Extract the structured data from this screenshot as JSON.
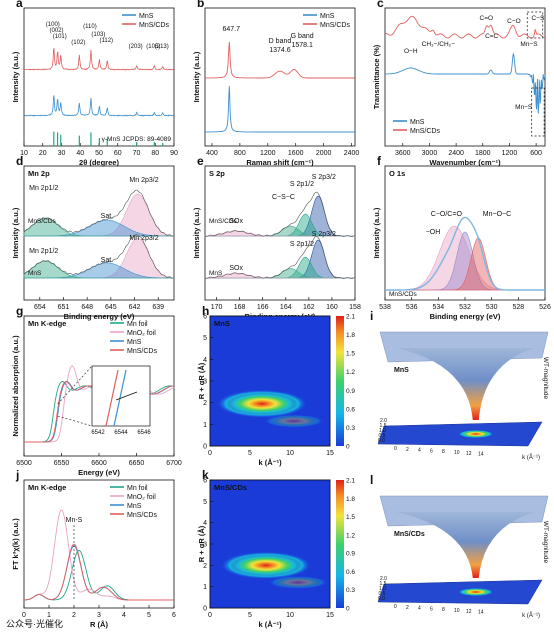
{
  "colors": {
    "red": "#e0605f",
    "blue": "#3c8fd0",
    "teal": "#1fa68a",
    "pink": "#e6a3c6",
    "green": "#3aaa8c",
    "purple": "#9c88c8",
    "navy": "#2a55a8"
  },
  "watermark": "公众号·光催化",
  "chart_data": [
    {
      "panel": "a",
      "type": "line",
      "xlabel": "2θ (degree)",
      "ylabel": "Intensity (a.u.)",
      "xlim": [
        10,
        90
      ],
      "xticks": [
        10,
        20,
        30,
        40,
        50,
        60,
        70,
        80,
        90
      ],
      "legend": [
        {
          "name": "MnS",
          "color": "#3c8fd0"
        },
        {
          "name": "MnS/CDs",
          "color": "#e0605f"
        }
      ],
      "series": [
        {
          "name": "MnS/CDs",
          "peaks": [
            [
              25.9,
              0.85
            ],
            [
              27.9,
              0.7
            ],
            [
              29.6,
              0.55
            ],
            [
              39.5,
              0.55
            ],
            [
              45.7,
              0.75
            ],
            [
              50.2,
              0.4
            ],
            [
              54.4,
              0.35
            ],
            [
              70.1,
              0.15
            ],
            [
              79.5,
              0.15
            ],
            [
              84.0,
              0.12
            ]
          ]
        },
        {
          "name": "MnS",
          "peaks": [
            [
              25.9,
              0.8
            ],
            [
              27.9,
              0.65
            ],
            [
              29.6,
              0.5
            ],
            [
              39.5,
              0.5
            ],
            [
              45.7,
              0.7
            ],
            [
              50.2,
              0.35
            ],
            [
              54.4,
              0.3
            ],
            [
              70.1,
              0.12
            ],
            [
              79.5,
              0.12
            ],
            [
              84.0,
              0.1
            ]
          ]
        }
      ],
      "reference": {
        "label": "γ-MnS JCPDS: 89-4089",
        "lines": [
          [
            25.9,
            0.9
          ],
          [
            27.9,
            0.85
          ],
          [
            29.6,
            0.7
          ],
          [
            39.5,
            0.65
          ],
          [
            45.7,
            0.85
          ],
          [
            50.2,
            0.5
          ],
          [
            54.4,
            0.45
          ],
          [
            70.1,
            0.25
          ],
          [
            79.5,
            0.25
          ],
          [
            84.0,
            0.2
          ]
        ]
      },
      "annotations": [
        "(100)",
        "(002)",
        "(101)",
        "(102)",
        "(110)",
        "(103)",
        "(112)",
        "(203)",
        "(105)",
        "(213)"
      ]
    },
    {
      "panel": "b",
      "type": "line",
      "xlabel": "Raman shift (cm⁻¹)",
      "ylabel": "Intensity (a.u.)",
      "xlim": [
        300,
        2450
      ],
      "xticks": [
        400,
        800,
        1200,
        1600,
        2000,
        2400
      ],
      "legend": [
        {
          "name": "MnS",
          "color": "#3c8fd0"
        },
        {
          "name": "MnS/CDs",
          "color": "#e0605f"
        }
      ],
      "annotations": [
        "647.7",
        "D band",
        "1374.6",
        "G band",
        "1578.1"
      ],
      "series": [
        {
          "name": "MnS/CDs",
          "peak": 647.7,
          "d_band": 1374.6,
          "g_band": 1578.1
        },
        {
          "name": "MnS",
          "peak": 647.7
        }
      ]
    },
    {
      "panel": "c",
      "type": "line",
      "xlabel": "Wavenumber (cm⁻¹)",
      "ylabel": "Transmittance (%)",
      "xlim": [
        4000,
        400
      ],
      "xticks": [
        3600,
        3000,
        2400,
        1800,
        1200,
        600
      ],
      "legend": [
        {
          "name": "MnS",
          "color": "#3c8fd0"
        },
        {
          "name": "MnS/CDs",
          "color": "#e0605f"
        }
      ],
      "annotations": [
        "O−H",
        "CH₃−/CH₂−",
        "C=O",
        "C=C",
        "C−O",
        "C−S",
        "Mn−S",
        "Mn−S"
      ]
    },
    {
      "panel": "d",
      "type": "area",
      "title": "Mn 2p",
      "xlabel": "Binding energy (eV)",
      "ylabel": "Intensity (a.u.)",
      "xlim": [
        656,
        637
      ],
      "xticks": [
        654,
        651,
        648,
        645,
        642,
        639
      ],
      "annotations": [
        "Mn 2p1/2",
        "Sat.",
        "Mn 2p3/2",
        "MnS/CDs",
        "Mn 2p1/2",
        "Sat.",
        "Mn 2p3/2",
        "MnS"
      ],
      "components": [
        {
          "name": "Mn 2p3/2",
          "center": 641.6
        },
        {
          "name": "Sat.",
          "center": 645.5
        },
        {
          "name": "Mn 2p1/2",
          "center": 653.3
        }
      ]
    },
    {
      "panel": "e",
      "type": "area",
      "title": "S 2p",
      "xlabel": "Binding energy (eV)",
      "ylabel": "Intensity (a.u.)",
      "xlim": [
        171,
        158
      ],
      "xticks": [
        170,
        168,
        166,
        164,
        162,
        160,
        158
      ],
      "annotations": [
        "SOx",
        "C−S−C",
        "S 2p1/2",
        "S 2p3/2",
        "MnS/CDs",
        "SOx",
        "S 2p1/2",
        "S 2p3/2",
        "MnS"
      ],
      "components": [
        {
          "name": "S 2p3/2",
          "center": 161.2
        },
        {
          "name": "S 2p1/2",
          "center": 162.3
        },
        {
          "name": "C−S−C",
          "center": 163.6
        },
        {
          "name": "SOx",
          "center": 168.3
        }
      ]
    },
    {
      "panel": "f",
      "type": "area",
      "title": "O 1s",
      "xlabel": "Binding energy (eV)",
      "ylabel": "Intensity (a.u.)",
      "xlim": [
        538,
        526
      ],
      "xticks": [
        538,
        536,
        534,
        532,
        530,
        528,
        526
      ],
      "annotations": [
        "C−O/C=O",
        "−OH",
        "Mn−O−C",
        "MnS/CDs"
      ],
      "components": [
        {
          "name": "C−O/C=O",
          "center": 532.0
        },
        {
          "name": "−OH",
          "center": 532.8
        },
        {
          "name": "Mn−O−C",
          "center": 531.0
        }
      ]
    },
    {
      "panel": "g",
      "type": "line",
      "title": "Mn K-edge",
      "xlabel": "Energy (eV)",
      "ylabel": "Normalized absorption (a.u.)",
      "xlim": [
        6500,
        6700
      ],
      "xticks": [
        6500,
        6550,
        6600,
        6650,
        6700
      ],
      "legend": [
        {
          "name": "Mn foil",
          "color": "#1fa68a"
        },
        {
          "name": "MnO₂ foil",
          "color": "#e6a3c6"
        },
        {
          "name": "MnS",
          "color": "#3c8fd0"
        },
        {
          "name": "MnS/CDs",
          "color": "#e0605f"
        }
      ],
      "inset": {
        "xticks": [
          6542,
          6544,
          6546
        ]
      }
    },
    {
      "panel": "h",
      "type": "heatmap",
      "title": "MnS",
      "xlabel": "k (Å⁻¹)",
      "ylabel": "R + αR (Å)",
      "xlim": [
        0,
        15
      ],
      "ylim": [
        0,
        6
      ],
      "xticks": [
        0,
        5,
        10,
        15
      ],
      "yticks": [
        0,
        1,
        2,
        3,
        4,
        5,
        6
      ],
      "colorbar": [
        0,
        0.3,
        0.6,
        0.9,
        1.2,
        1.5,
        1.8,
        2.1
      ],
      "max": {
        "k": 6.5,
        "R": 1.95
      }
    },
    {
      "panel": "i",
      "type": "surface",
      "title": "MnS",
      "zlabel": "WT-magnitude",
      "axis_labels": [
        "k (Å⁻¹)"
      ],
      "ticks": [
        "2.0",
        "1.5",
        "1.0",
        "0.5",
        "0.0",
        "0",
        "2",
        "4",
        "6",
        "8",
        "10",
        "12",
        "14"
      ]
    },
    {
      "panel": "j",
      "type": "line",
      "title": "Mn K-edge",
      "xlabel": "R (Å)",
      "ylabel": "FT k³χ(k) (a.u.)",
      "xlim": [
        0,
        6
      ],
      "xticks": [
        0,
        1,
        2,
        3,
        4,
        5,
        6
      ],
      "legend": [
        {
          "name": "Mn foil",
          "color": "#1fa68a"
        },
        {
          "name": "MnO₂ foil",
          "color": "#e6a3c6"
        },
        {
          "name": "MnS",
          "color": "#3c8fd0"
        },
        {
          "name": "MnS/CDs",
          "color": "#e0605f"
        }
      ],
      "annotations": [
        "Mn-S"
      ],
      "series": [
        {
          "name": "Mn foil",
          "peak": 2.2
        },
        {
          "name": "MnO₂ foil",
          "peak": 1.5
        },
        {
          "name": "MnS",
          "peak": 2.0
        },
        {
          "name": "MnS/CDs",
          "peak": 2.0
        }
      ]
    },
    {
      "panel": "k",
      "type": "heatmap",
      "title": "MnS/CDs",
      "xlabel": "k (Å⁻¹)",
      "ylabel": "R + αR (Å)",
      "xlim": [
        0,
        15
      ],
      "ylim": [
        0,
        6
      ],
      "xticks": [
        0,
        5,
        10,
        15
      ],
      "yticks": [
        0,
        1,
        2,
        3,
        4,
        5,
        6
      ],
      "colorbar": [
        0,
        0.3,
        0.6,
        0.9,
        1.2,
        1.5,
        1.8,
        2.1
      ],
      "max": {
        "k": 7.0,
        "R": 2.0
      }
    },
    {
      "panel": "l",
      "type": "surface",
      "title": "MnS/CDs",
      "zlabel": "WT-magnitude",
      "axis_labels": [
        "k (Å⁻¹)"
      ],
      "ticks": [
        "2.0",
        "1.5",
        "1.0",
        "0.5",
        "0.0",
        "0",
        "2",
        "4",
        "6",
        "8",
        "10",
        "12",
        "14"
      ]
    }
  ]
}
